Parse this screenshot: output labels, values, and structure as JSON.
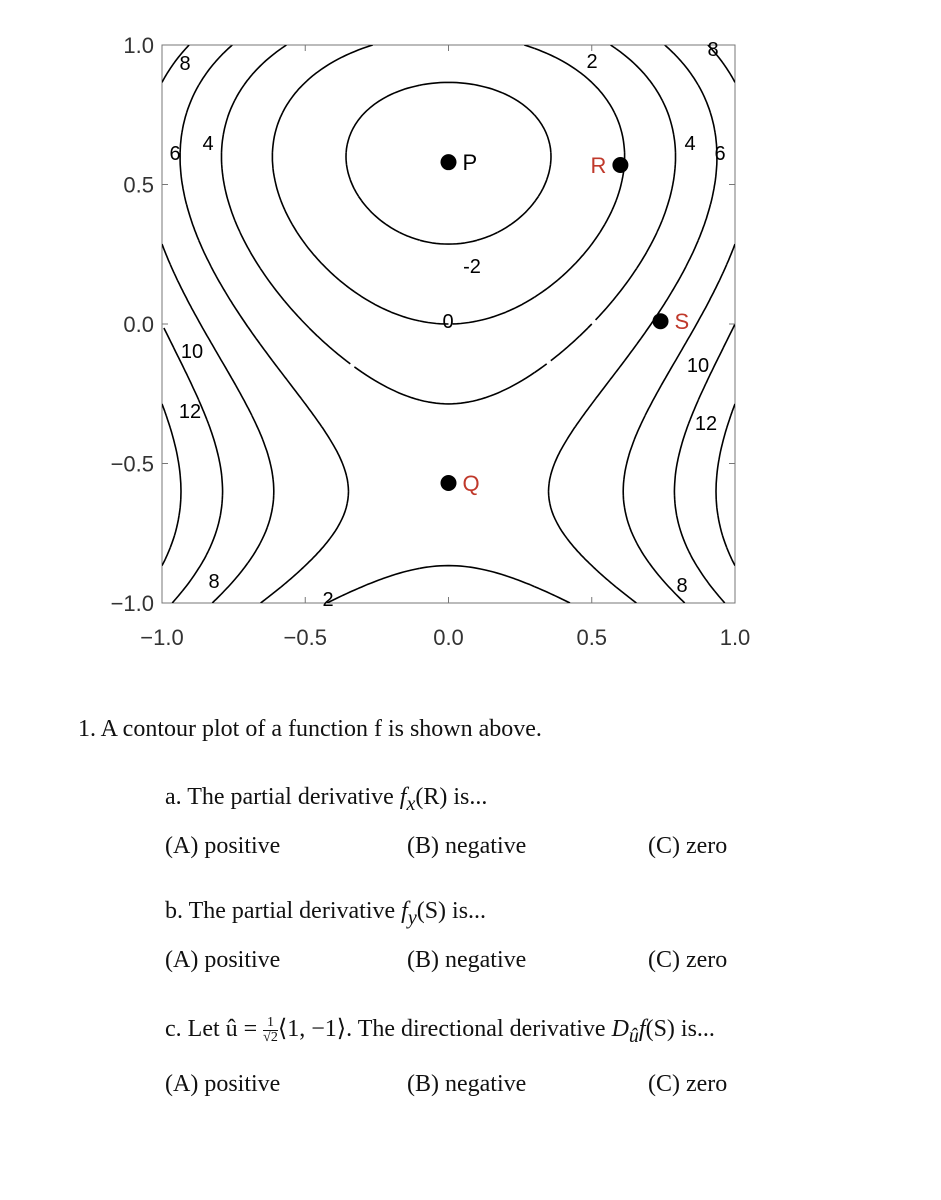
{
  "figure": {
    "xlim": [
      -1,
      1
    ],
    "ylim": [
      -1,
      1
    ],
    "xticks": [
      {
        "value": -1,
        "label": "−1.0"
      },
      {
        "value": -0.5,
        "label": "−0.5"
      },
      {
        "value": 0,
        "label": "0.0"
      },
      {
        "value": 0.5,
        "label": "0.5"
      },
      {
        "value": 1,
        "label": "1.0"
      }
    ],
    "yticks": [
      {
        "value": 1,
        "label": "1.0"
      },
      {
        "value": 0.5,
        "label": "0.5"
      },
      {
        "value": 0,
        "label": "0.0"
      },
      {
        "value": -0.5,
        "label": "−0.5"
      },
      {
        "value": -1,
        "label": "−1.0"
      }
    ],
    "points": [
      {
        "label": "P",
        "x": 0,
        "y": 0.58,
        "color": "#000000"
      },
      {
        "label": "R",
        "x": 0.6,
        "y": 0.57,
        "color": "#c0392b"
      },
      {
        "label": "S",
        "x": 0.74,
        "y": 0.01,
        "color": "#c0392b"
      },
      {
        "label": "Q",
        "x": 0,
        "y": -0.57,
        "color": "#c0392b"
      }
    ],
    "contour_labels": [
      8,
      6,
      4,
      2,
      8,
      4,
      6,
      -2,
      0,
      10,
      12,
      10,
      12,
      8,
      2,
      8
    ]
  },
  "question": {
    "stem": "1. A contour plot of a function f is shown above.",
    "parts": [
      {
        "prompt": [
          "a. The partial derivative ",
          "f",
          "x",
          "(R) is..."
        ],
        "choices": [
          "(A) positive",
          "(B) negative",
          "(C) zero"
        ]
      },
      {
        "prompt": [
          "b. The partial derivative ",
          "f",
          "y",
          "(S) is..."
        ],
        "choices": [
          "(A) positive",
          "(B) negative",
          "(C) zero"
        ]
      },
      {
        "prompt": [
          "c. Let û = ",
          "1",
          "√2",
          "⟨1, −1⟩. The directional derivative ",
          "D",
          "û",
          "f",
          "(S) is..."
        ],
        "choices": [
          "(A) positive",
          "(B) negative",
          "(C) zero"
        ]
      }
    ]
  }
}
